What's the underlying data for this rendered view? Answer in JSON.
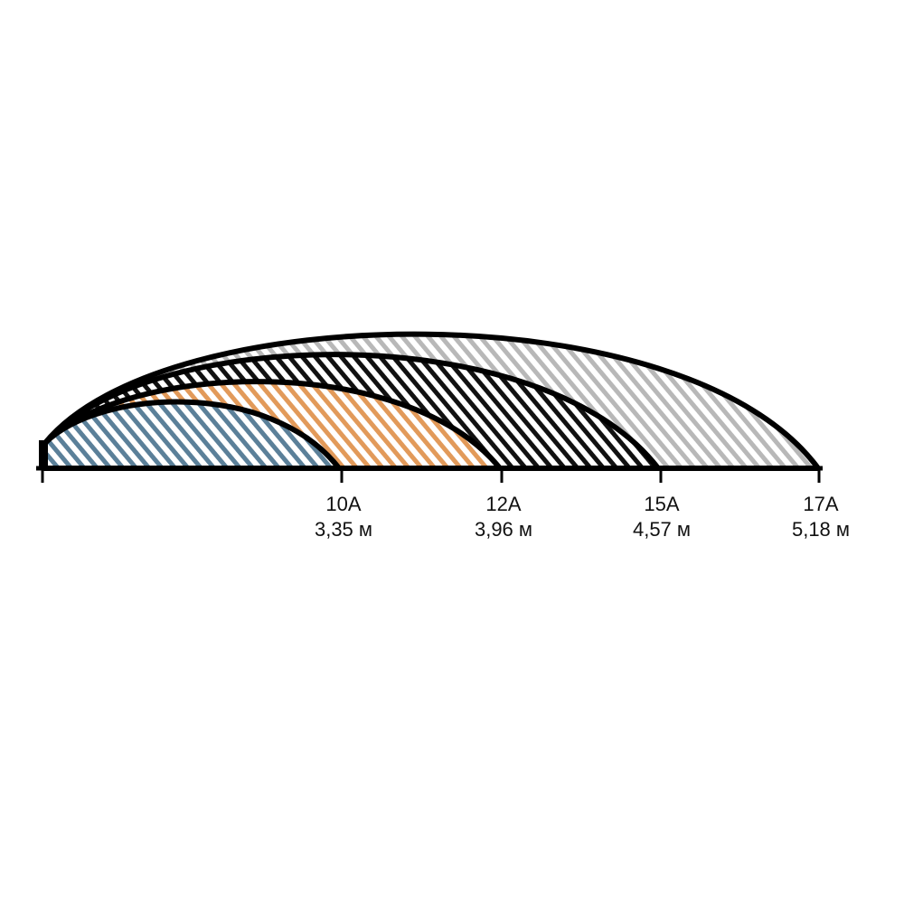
{
  "ranges": [
    {
      "nozzle": "10A",
      "distance": "3,35 м",
      "color": "#5b8099"
    },
    {
      "nozzle": "12A",
      "distance": "3,96 м",
      "color": "#e29a5a"
    },
    {
      "nozzle": "15A",
      "distance": "4,57 м",
      "color": "#111111"
    },
    {
      "nozzle": "17A",
      "distance": "5,18 м",
      "color": "#b8b8b8"
    }
  ]
}
